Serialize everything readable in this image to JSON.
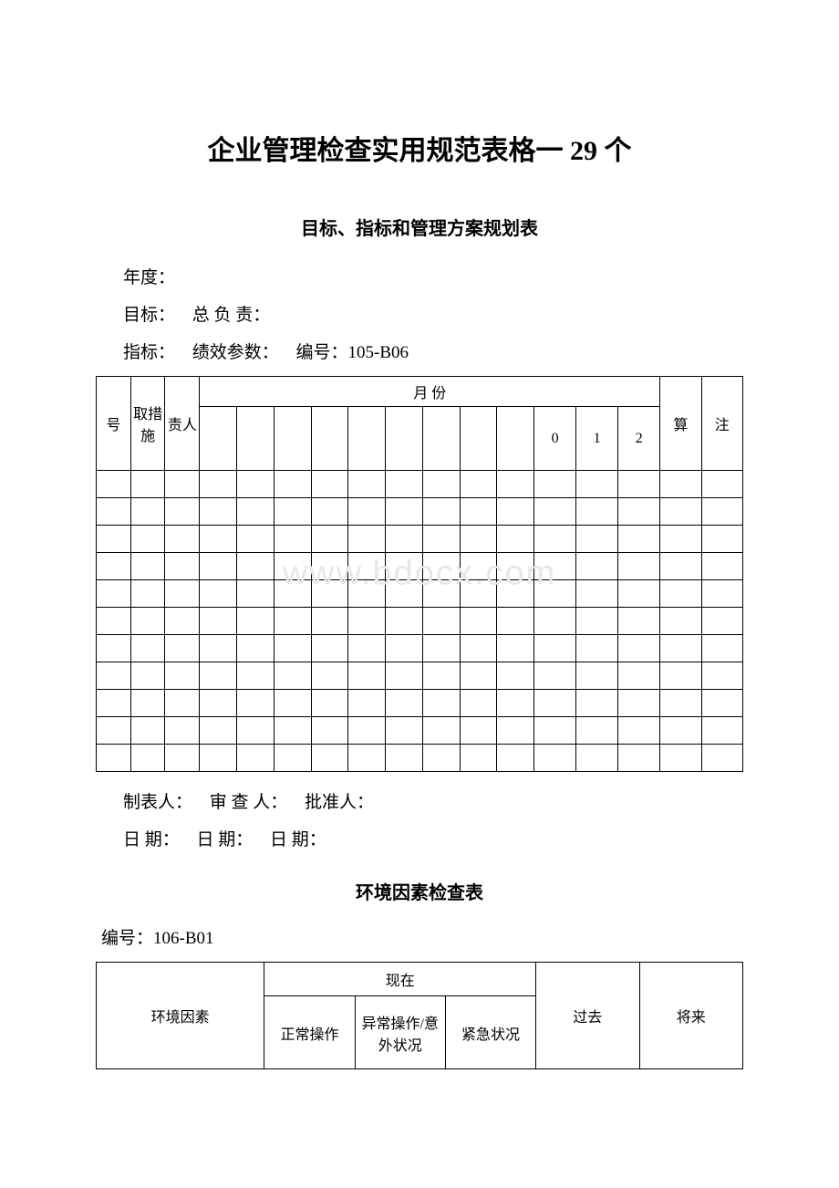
{
  "mainTitle": "企业管理检查实用规范表格一 29 个",
  "section1": {
    "subTitle": "目标、指标和管理方案规划表",
    "yearLabel": "年度：",
    "goalLabel": "目标：",
    "responsibleLabel": "总 负 责：",
    "indicatorLabel": "指标：",
    "perfParamLabel": "绩效参数：",
    "idLabel": "编号：105-B06",
    "table": {
      "headers": {
        "col1": "号",
        "col2": "取措施",
        "col3": "责人",
        "monthHeader": "月 份",
        "m10": "0",
        "m11": "1",
        "m12": "2",
        "col16": "算",
        "col17": "注"
      },
      "emptyRowCount": 11
    },
    "footer": {
      "preparer": "制表人：",
      "reviewer": "审 查 人：",
      "approver": "批准人：",
      "date1": "日 期：",
      "date2": "日 期：",
      "date3": "日 期："
    }
  },
  "section2": {
    "subTitle": "环境因素检查表",
    "idLabel": "编号：106-B01",
    "table": {
      "headers": {
        "envFactor": "环境因素",
        "now": "现在",
        "normal": "正常操作",
        "abnormal": "异常操作/意外状况",
        "emergency": "紧急状况",
        "past": "过去",
        "future": "将来"
      }
    }
  },
  "watermarkText": "www.bdocx.com"
}
